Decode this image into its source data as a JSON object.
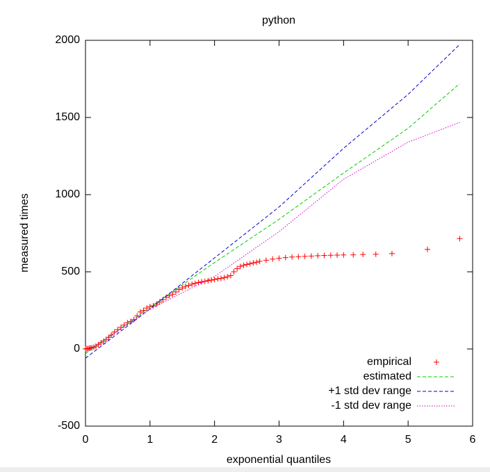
{
  "chart_data": {
    "type": "line",
    "title": "python",
    "x_label": "exponential quantiles",
    "y_label": "measured times",
    "xlim": [
      0,
      6
    ],
    "ylim": [
      -500,
      2000
    ],
    "xticks": [
      0,
      1,
      2,
      3,
      4,
      5,
      6
    ],
    "yticks": [
      -500,
      0,
      500,
      1000,
      1500,
      2000
    ],
    "legend": "bottom right",
    "series": [
      {
        "name": "empirical",
        "color": "#ff0000",
        "style": "points",
        "x": [
          0.0,
          0.02,
          0.04,
          0.06,
          0.08,
          0.1,
          0.13,
          0.16,
          0.2,
          0.24,
          0.28,
          0.32,
          0.36,
          0.4,
          0.45,
          0.5,
          0.55,
          0.6,
          0.65,
          0.7,
          0.75,
          0.8,
          0.85,
          0.9,
          0.95,
          1.0,
          1.05,
          1.1,
          1.15,
          1.2,
          1.25,
          1.3,
          1.35,
          1.4,
          1.45,
          1.5,
          1.55,
          1.6,
          1.65,
          1.7,
          1.75,
          1.8,
          1.85,
          1.9,
          1.95,
          2.0,
          2.05,
          2.1,
          2.15,
          2.2,
          2.25,
          2.3,
          2.35,
          2.4,
          2.45,
          2.5,
          2.55,
          2.6,
          2.65,
          2.7,
          2.8,
          2.9,
          3.0,
          3.1,
          3.2,
          3.3,
          3.4,
          3.5,
          3.6,
          3.7,
          3.8,
          3.9,
          4.0,
          4.15,
          4.3,
          4.5,
          4.75,
          5.3,
          5.8
        ],
        "values": [
          0,
          2,
          3,
          5,
          6,
          8,
          12,
          18,
          28,
          40,
          50,
          62,
          75,
          90,
          110,
          125,
          140,
          155,
          170,
          178,
          190,
          215,
          240,
          250,
          265,
          275,
          280,
          290,
          305,
          320,
          335,
          345,
          355,
          370,
          385,
          395,
          405,
          412,
          420,
          425,
          430,
          435,
          438,
          442,
          446,
          450,
          455,
          458,
          462,
          468,
          475,
          500,
          520,
          535,
          542,
          548,
          552,
          558,
          562,
          568,
          575,
          582,
          588,
          592,
          596,
          598,
          600,
          602,
          604,
          606,
          607,
          608,
          609,
          610,
          612,
          614,
          618,
          645,
          715
        ]
      },
      {
        "name": "estimated",
        "color": "#00cc00",
        "style": "dashed",
        "x": [
          0,
          1,
          2,
          3,
          4,
          5,
          5.8
        ],
        "values": [
          -30,
          270,
          560,
          840,
          1140,
          1430,
          1720
        ]
      },
      {
        "name": "+1 std dev range",
        "color": "#0000cc",
        "style": "dashed",
        "x": [
          0,
          1,
          2,
          3,
          4,
          5,
          5.8
        ],
        "values": [
          -60,
          260,
          590,
          920,
          1300,
          1650,
          1973
        ]
      },
      {
        "name": "-1 std dev range",
        "color": "#cc00cc",
        "style": "dotted",
        "x": [
          0,
          1,
          2,
          3,
          4,
          5,
          5.8
        ],
        "values": [
          -20,
          257,
          470,
          760,
          1100,
          1340,
          1468
        ]
      }
    ]
  }
}
